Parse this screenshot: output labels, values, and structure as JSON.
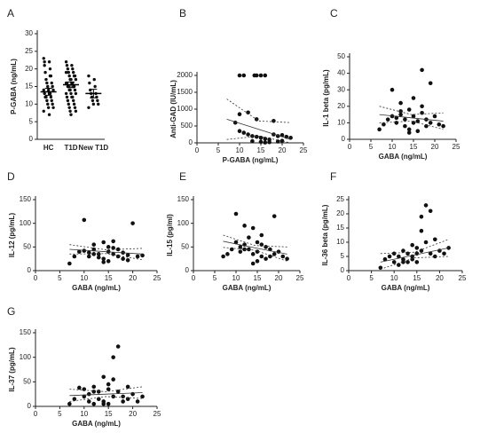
{
  "chart_data": [
    {
      "type": "strip",
      "label": "A",
      "ylabel": "P-GABA (ng/mL)",
      "categories": [
        "HC",
        "T1D",
        "New T1D"
      ],
      "ylim": [
        0,
        30
      ],
      "yticks": [
        0,
        5,
        10,
        15,
        20,
        25,
        30
      ],
      "color": "#111",
      "values": [
        [
          23,
          22,
          21,
          20,
          19,
          18,
          17,
          16,
          16,
          15,
          15,
          14,
          14,
          14,
          13,
          13,
          13,
          12,
          12,
          12,
          11,
          11,
          10,
          10,
          9,
          9,
          8,
          7,
          22,
          18
        ],
        [
          22,
          21,
          21,
          20,
          20,
          19,
          19,
          18,
          18,
          18,
          17,
          17,
          17,
          16,
          16,
          16,
          16,
          15,
          15,
          15,
          15,
          14,
          14,
          14,
          13,
          13,
          13,
          12,
          12,
          12,
          11,
          11,
          10,
          10,
          9,
          9,
          8,
          8,
          7,
          19
        ],
        [
          18,
          17,
          16,
          15,
          14,
          13,
          13,
          12,
          12,
          11,
          11,
          10,
          10,
          9
        ]
      ],
      "means": [
        13.5,
        15.5,
        13
      ],
      "errors": [
        1,
        0.8,
        1.2
      ]
    },
    {
      "type": "scatter",
      "label": "B",
      "xlabel": "P-GABA (ng/mL)",
      "ylabel": "Anti-GAD (IU/mL)",
      "xlim": [
        0,
        25
      ],
      "xticks": [
        0,
        5,
        10,
        15,
        20,
        25
      ],
      "ylim": [
        0,
        2000
      ],
      "yticks": [
        0,
        500,
        1000,
        1500,
        2000
      ],
      "color": "#111",
      "x": [
        10,
        11,
        13.5,
        14,
        15,
        16,
        10,
        12,
        14,
        18,
        9,
        10,
        11,
        12,
        13,
        14,
        15,
        16,
        17,
        18,
        19,
        20,
        21,
        22,
        13,
        15,
        17,
        19,
        16,
        20
      ],
      "values": [
        2000,
        2000,
        2000,
        2000,
        2000,
        2000,
        850,
        900,
        700,
        650,
        600,
        350,
        300,
        250,
        200,
        180,
        150,
        120,
        100,
        250,
        200,
        230,
        180,
        150,
        50,
        30,
        20,
        40,
        10,
        60
      ],
      "fit": {
        "x": [
          7,
          14.5,
          22
        ],
        "y": [
          700,
          400,
          100
        ],
        "upper": [
          1300,
          650,
          600
        ],
        "lower": [
          100,
          200,
          0
        ]
      }
    },
    {
      "type": "scatter",
      "label": "C",
      "xlabel": "GABA (ng/mL)",
      "ylabel": "IL-1 beta (pg/mL)",
      "xlim": [
        0,
        25
      ],
      "xticks": [
        0,
        5,
        10,
        15,
        20,
        25
      ],
      "ylim": [
        0,
        50
      ],
      "yticks": [
        0,
        10,
        20,
        30,
        40,
        50
      ],
      "color": "#111",
      "x": [
        7,
        8,
        9,
        10,
        10,
        11,
        11,
        12,
        12,
        13,
        13,
        14,
        14,
        15,
        15,
        15,
        16,
        16,
        17,
        17,
        18,
        18,
        19,
        19,
        20,
        21,
        22,
        17,
        14,
        12
      ],
      "values": [
        6,
        9,
        12,
        30,
        14,
        13,
        10,
        15,
        22,
        12,
        8,
        18,
        6,
        25,
        14,
        10,
        11,
        5,
        42,
        16,
        12,
        8,
        34,
        10,
        14,
        9,
        8,
        20,
        4,
        17
      ],
      "fit": {
        "x": [
          7,
          14.5,
          22
        ],
        "y": [
          15,
          13,
          11
        ],
        "upper": [
          20,
          15,
          16
        ],
        "lower": [
          10,
          11,
          6
        ]
      }
    },
    {
      "type": "scatter",
      "label": "D",
      "xlabel": "GABA (ng/mL)",
      "ylabel": "IL-12 (pg/mL)",
      "xlim": [
        0,
        25
      ],
      "xticks": [
        0,
        5,
        10,
        15,
        20,
        25
      ],
      "ylim": [
        0,
        150
      ],
      "yticks": [
        0,
        50,
        100,
        150
      ],
      "color": "#111",
      "x": [
        7,
        8,
        9,
        10,
        10,
        11,
        11,
        12,
        12,
        13,
        13,
        14,
        14,
        15,
        15,
        15,
        16,
        16,
        17,
        17,
        18,
        18,
        19,
        19,
        20,
        21,
        22,
        16,
        14,
        12
      ],
      "values": [
        15,
        30,
        40,
        107,
        42,
        38,
        30,
        45,
        55,
        28,
        35,
        60,
        25,
        50,
        40,
        20,
        62,
        35,
        30,
        45,
        25,
        38,
        22,
        33,
        100,
        30,
        32,
        48,
        18,
        35
      ],
      "fit": {
        "x": [
          7,
          14.5,
          22
        ],
        "y": [
          45,
          40,
          35
        ],
        "upper": [
          55,
          44,
          47
        ],
        "lower": [
          35,
          36,
          23
        ]
      }
    },
    {
      "type": "scatter",
      "label": "E",
      "xlabel": "GABA (ng/mL)",
      "ylabel": "IL-15 (pg/ml)",
      "xlim": [
        0,
        25
      ],
      "xticks": [
        0,
        5,
        10,
        15,
        20,
        25
      ],
      "ylim": [
        0,
        150
      ],
      "yticks": [
        0,
        50,
        100,
        150
      ],
      "color": "#111",
      "x": [
        7,
        8,
        9,
        10,
        10,
        11,
        11,
        12,
        12,
        13,
        13,
        14,
        14,
        15,
        15,
        15,
        16,
        16,
        17,
        17,
        18,
        18,
        19,
        19,
        20,
        21,
        22,
        16,
        14,
        12
      ],
      "values": [
        30,
        35,
        45,
        120,
        60,
        50,
        40,
        95,
        55,
        45,
        70,
        90,
        35,
        60,
        40,
        20,
        75,
        30,
        25,
        50,
        45,
        30,
        115,
        35,
        40,
        30,
        25,
        55,
        15,
        45
      ],
      "fit": {
        "x": [
          7,
          14.5,
          22
        ],
        "y": [
          62,
          48,
          35
        ],
        "upper": [
          75,
          53,
          50
        ],
        "lower": [
          49,
          43,
          20
        ]
      }
    },
    {
      "type": "scatter",
      "label": "F",
      "xlabel": "GABA (ng/mL)",
      "ylabel": "IL-36 beta (pg/mL)",
      "xlim": [
        0,
        25
      ],
      "xticks": [
        0,
        5,
        10,
        15,
        20,
        25
      ],
      "ylim": [
        0,
        25
      ],
      "yticks": [
        0,
        5,
        10,
        15,
        20,
        25
      ],
      "color": "#111",
      "x": [
        7,
        8,
        9,
        10,
        10,
        11,
        11,
        12,
        12,
        13,
        13,
        14,
        14,
        15,
        15,
        15,
        16,
        16,
        17,
        17,
        18,
        18,
        19,
        19,
        20,
        21,
        22,
        16,
        14,
        12
      ],
      "values": [
        1,
        4,
        5,
        6,
        3,
        5,
        2,
        7,
        4,
        6,
        3,
        9,
        5,
        8,
        6,
        3,
        19,
        7,
        23,
        10,
        21,
        6,
        11,
        5,
        7,
        6,
        8,
        14,
        4,
        3
      ],
      "fit": {
        "x": [
          7,
          14.5,
          22
        ],
        "y": [
          3,
          5.5,
          8
        ],
        "upper": [
          6,
          6.5,
          11
        ],
        "lower": [
          0.5,
          4.5,
          5
        ]
      }
    },
    {
      "type": "scatter",
      "label": "G",
      "xlabel": "GABA (ng/mL)",
      "ylabel": "IL-37 (pg/mL)",
      "xlim": [
        0,
        25
      ],
      "xticks": [
        0,
        5,
        10,
        15,
        20,
        25
      ],
      "ylim": [
        0,
        150
      ],
      "yticks": [
        0,
        50,
        100,
        150
      ],
      "color": "#111",
      "x": [
        7,
        8,
        9,
        10,
        10,
        11,
        11,
        12,
        12,
        13,
        13,
        14,
        14,
        15,
        15,
        15,
        16,
        16,
        17,
        17,
        18,
        18,
        19,
        19,
        20,
        21,
        22,
        16,
        14,
        12
      ],
      "values": [
        5,
        15,
        38,
        35,
        20,
        10,
        25,
        5,
        40,
        30,
        15,
        60,
        10,
        35,
        45,
        5,
        55,
        20,
        122,
        30,
        20,
        10,
        40,
        15,
        25,
        10,
        20,
        100,
        5,
        30
      ],
      "fit": {
        "x": [
          7,
          14.5,
          22
        ],
        "y": [
          22,
          25,
          28
        ],
        "upper": [
          35,
          30,
          40
        ],
        "lower": [
          10,
          20,
          16
        ]
      }
    }
  ]
}
